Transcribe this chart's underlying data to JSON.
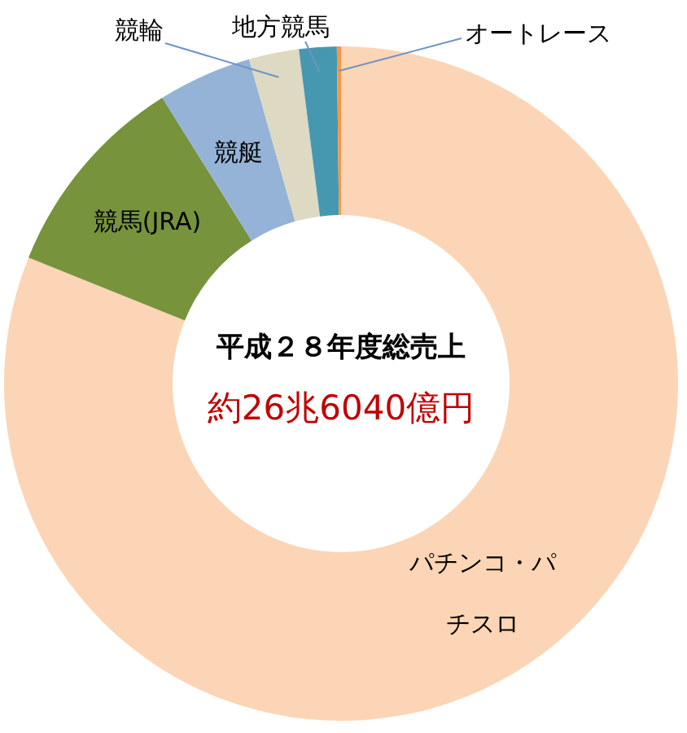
{
  "chart_data": {
    "type": "donut",
    "title": "平成２８年度総売上",
    "subtitle": "約26兆6040億円",
    "categories": [
      "パチンコ・パチスロ",
      "競馬(JRA)",
      "競艇",
      "競輪",
      "地方競馬",
      "オートレース"
    ],
    "values": [
      81.1,
      10.0,
      4.5,
      2.4,
      1.8,
      0.2
    ],
    "colors": [
      "#fbd5b5",
      "#77933c",
      "#95b3d7",
      "#ddd9c3",
      "#4698b0",
      "#f79646"
    ]
  }
}
